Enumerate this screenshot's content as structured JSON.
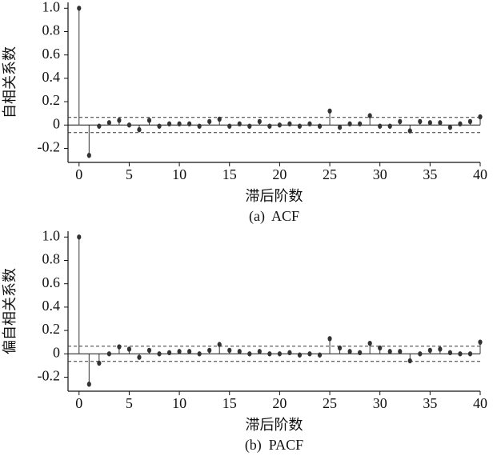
{
  "chart_data": [
    {
      "type": "stem",
      "ylabel": "自相关系数",
      "xlabel": "滞后阶数",
      "caption": "(a)  ACF",
      "x": [
        0,
        1,
        2,
        3,
        4,
        5,
        6,
        7,
        8,
        9,
        10,
        11,
        12,
        13,
        14,
        15,
        16,
        17,
        18,
        19,
        20,
        21,
        22,
        23,
        24,
        25,
        26,
        27,
        28,
        29,
        30,
        31,
        32,
        33,
        34,
        35,
        36,
        37,
        38,
        39,
        40
      ],
      "values": [
        1.0,
        -0.26,
        -0.01,
        0.02,
        0.04,
        0.0,
        -0.04,
        0.04,
        -0.01,
        0.01,
        0.01,
        0.01,
        -0.01,
        0.03,
        0.05,
        -0.01,
        0.01,
        -0.01,
        0.03,
        -0.01,
        0.0,
        0.01,
        -0.01,
        0.01,
        -0.01,
        0.12,
        -0.02,
        0.01,
        0.01,
        0.08,
        -0.01,
        -0.01,
        0.03,
        -0.05,
        0.03,
        0.02,
        0.02,
        -0.02,
        0.01,
        0.03,
        0.07
      ],
      "color": "#333333",
      "conf_band": 0.065,
      "xlim": [
        -1.1,
        40
      ],
      "xticks": [
        0,
        5,
        10,
        15,
        20,
        25,
        30,
        35,
        40
      ],
      "ylim": [
        -0.32,
        1.05
      ],
      "yticks": [
        -0.2,
        0,
        0.2,
        0.4,
        0.6,
        0.8,
        {
          "value": 1,
          "label": "1.0"
        }
      ]
    },
    {
      "type": "stem",
      "ylabel": "偏自相关系数",
      "xlabel": "滞后阶数",
      "caption": "(b)  PACF",
      "x": [
        0,
        1,
        2,
        3,
        4,
        5,
        6,
        7,
        8,
        9,
        10,
        11,
        12,
        13,
        14,
        15,
        16,
        17,
        18,
        19,
        20,
        21,
        22,
        23,
        24,
        25,
        26,
        27,
        28,
        29,
        30,
        31,
        32,
        33,
        34,
        35,
        36,
        37,
        38,
        39,
        40
      ],
      "values": [
        1.0,
        -0.26,
        -0.08,
        0.0,
        0.06,
        0.04,
        -0.03,
        0.03,
        0.0,
        0.01,
        0.02,
        0.02,
        0.0,
        0.03,
        0.08,
        0.03,
        0.02,
        0.0,
        0.02,
        0.0,
        0.0,
        0.01,
        -0.01,
        0.0,
        -0.01,
        0.13,
        0.05,
        0.02,
        0.01,
        0.09,
        0.05,
        0.02,
        0.02,
        -0.06,
        0.0,
        0.03,
        0.04,
        0.01,
        0.0,
        0.0,
        0.1
      ],
      "color": "#333333",
      "conf_band": 0.065,
      "xlim": [
        -1.1,
        40
      ],
      "xticks": [
        0,
        5,
        10,
        15,
        20,
        25,
        30,
        35,
        40
      ],
      "ylim": [
        -0.32,
        1.05
      ],
      "yticks": [
        -0.2,
        0,
        0.2,
        0.4,
        0.6,
        0.8,
        {
          "value": 1,
          "label": "1.0"
        }
      ]
    }
  ]
}
